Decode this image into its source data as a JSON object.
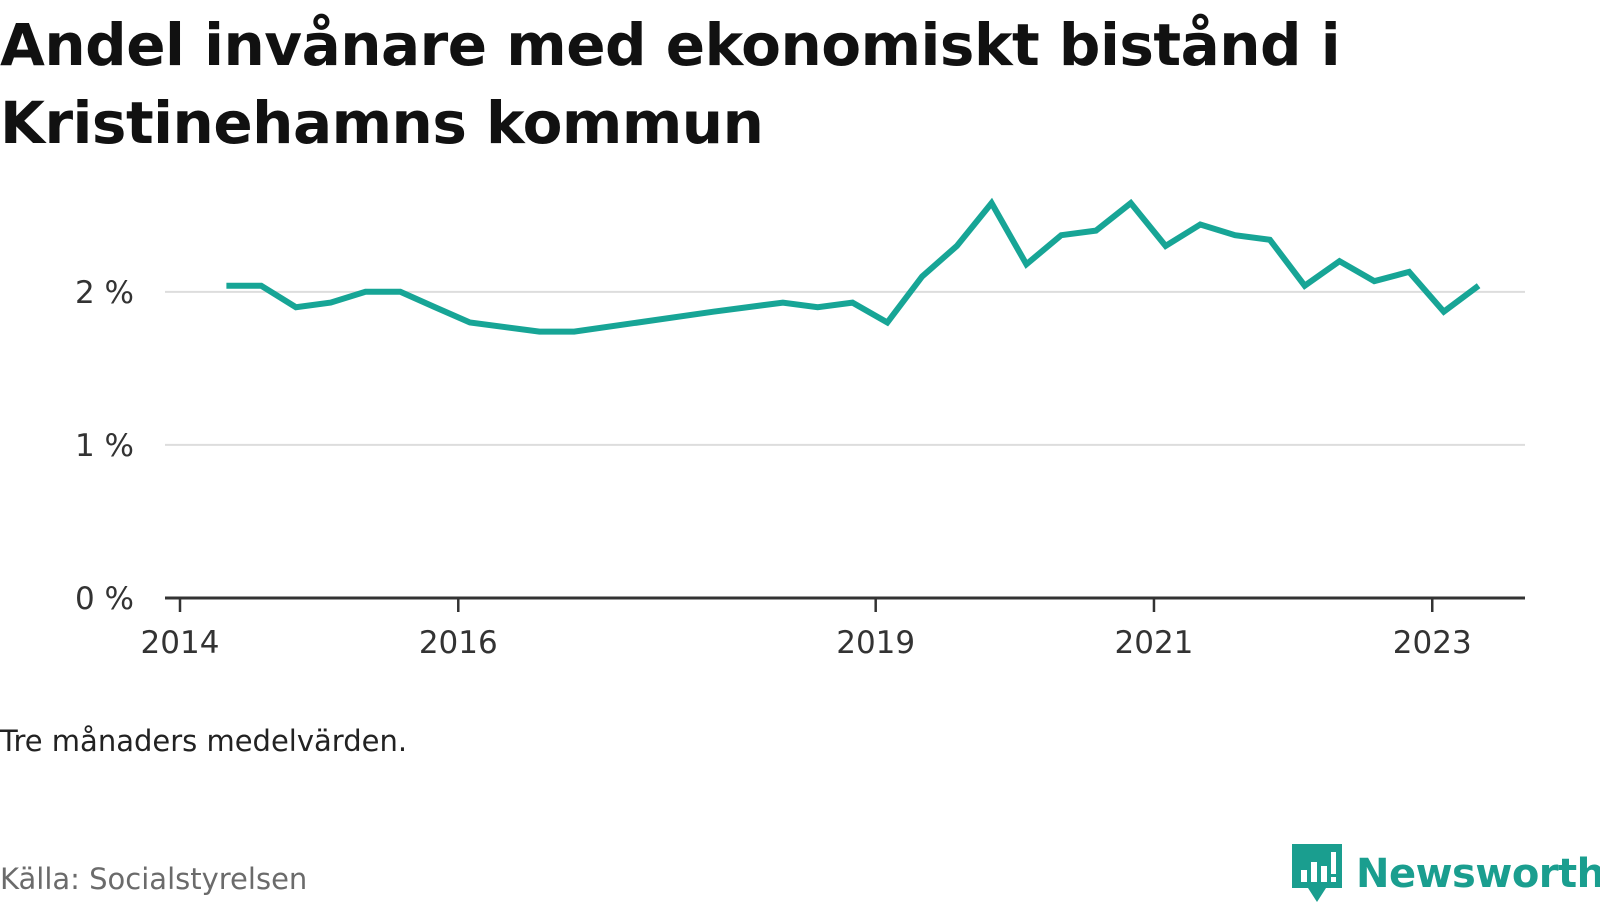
{
  "title": "Andel invånare med ekonomiskt bistånd i Kristinehamns kommun",
  "note": "Tre månaders medelvärden.",
  "source": "Källa: Socialstyrelsen",
  "brand": {
    "name": "Newsworthy",
    "icon": "newsworthy-logo-icon",
    "color": "#1a9e8f"
  },
  "chart_data": {
    "type": "line",
    "title": "Andel invånare med ekonomiskt bistånd i Kristinehamns kommun",
    "xlabel": "",
    "ylabel": "",
    "grid": true,
    "ylim": [
      0,
      2.6
    ],
    "xlim": [
      "2014-01",
      "2023-09"
    ],
    "x_ticks": [
      {
        "label": "2014",
        "date": "2014-01"
      },
      {
        "label": "2016",
        "date": "2016-01"
      },
      {
        "label": "2019",
        "date": "2019-01"
      },
      {
        "label": "2021",
        "date": "2021-01"
      },
      {
        "label": "2023",
        "date": "2023-01"
      }
    ],
    "y_ticks": [
      {
        "label": "0 %",
        "value": 0
      },
      {
        "label": "1 %",
        "value": 1
      },
      {
        "label": "2 %",
        "value": 2
      }
    ],
    "series": [
      {
        "color": "#17a596",
        "points": [
          {
            "x": "2014-05",
            "y": 2.04
          },
          {
            "x": "2014-08",
            "y": 2.04
          },
          {
            "x": "2014-11",
            "y": 1.9
          },
          {
            "x": "2015-02",
            "y": 1.93
          },
          {
            "x": "2015-05",
            "y": 2.0
          },
          {
            "x": "2015-08",
            "y": 2.0
          },
          {
            "x": "2015-11",
            "y": 1.9
          },
          {
            "x": "2016-02",
            "y": 1.8
          },
          {
            "x": "2016-08",
            "y": 1.74
          },
          {
            "x": "2016-11",
            "y": 1.74
          },
          {
            "x": "2017-11",
            "y": 1.87
          },
          {
            "x": "2018-05",
            "y": 1.93
          },
          {
            "x": "2018-08",
            "y": 1.9
          },
          {
            "x": "2018-11",
            "y": 1.93
          },
          {
            "x": "2019-02",
            "y": 1.8
          },
          {
            "x": "2019-05",
            "y": 2.1
          },
          {
            "x": "2019-08",
            "y": 2.3
          },
          {
            "x": "2019-11",
            "y": 2.58
          },
          {
            "x": "2020-02",
            "y": 2.18
          },
          {
            "x": "2020-05",
            "y": 2.37
          },
          {
            "x": "2020-08",
            "y": 2.4
          },
          {
            "x": "2020-11",
            "y": 2.58
          },
          {
            "x": "2021-02",
            "y": 2.3
          },
          {
            "x": "2021-05",
            "y": 2.44
          },
          {
            "x": "2021-08",
            "y": 2.37
          },
          {
            "x": "2021-11",
            "y": 2.34
          },
          {
            "x": "2022-02",
            "y": 2.04
          },
          {
            "x": "2022-05",
            "y": 2.2
          },
          {
            "x": "2022-08",
            "y": 2.07
          },
          {
            "x": "2022-11",
            "y": 2.13
          },
          {
            "x": "2023-02",
            "y": 1.87
          },
          {
            "x": "2023-05",
            "y": 2.04
          }
        ]
      }
    ]
  }
}
